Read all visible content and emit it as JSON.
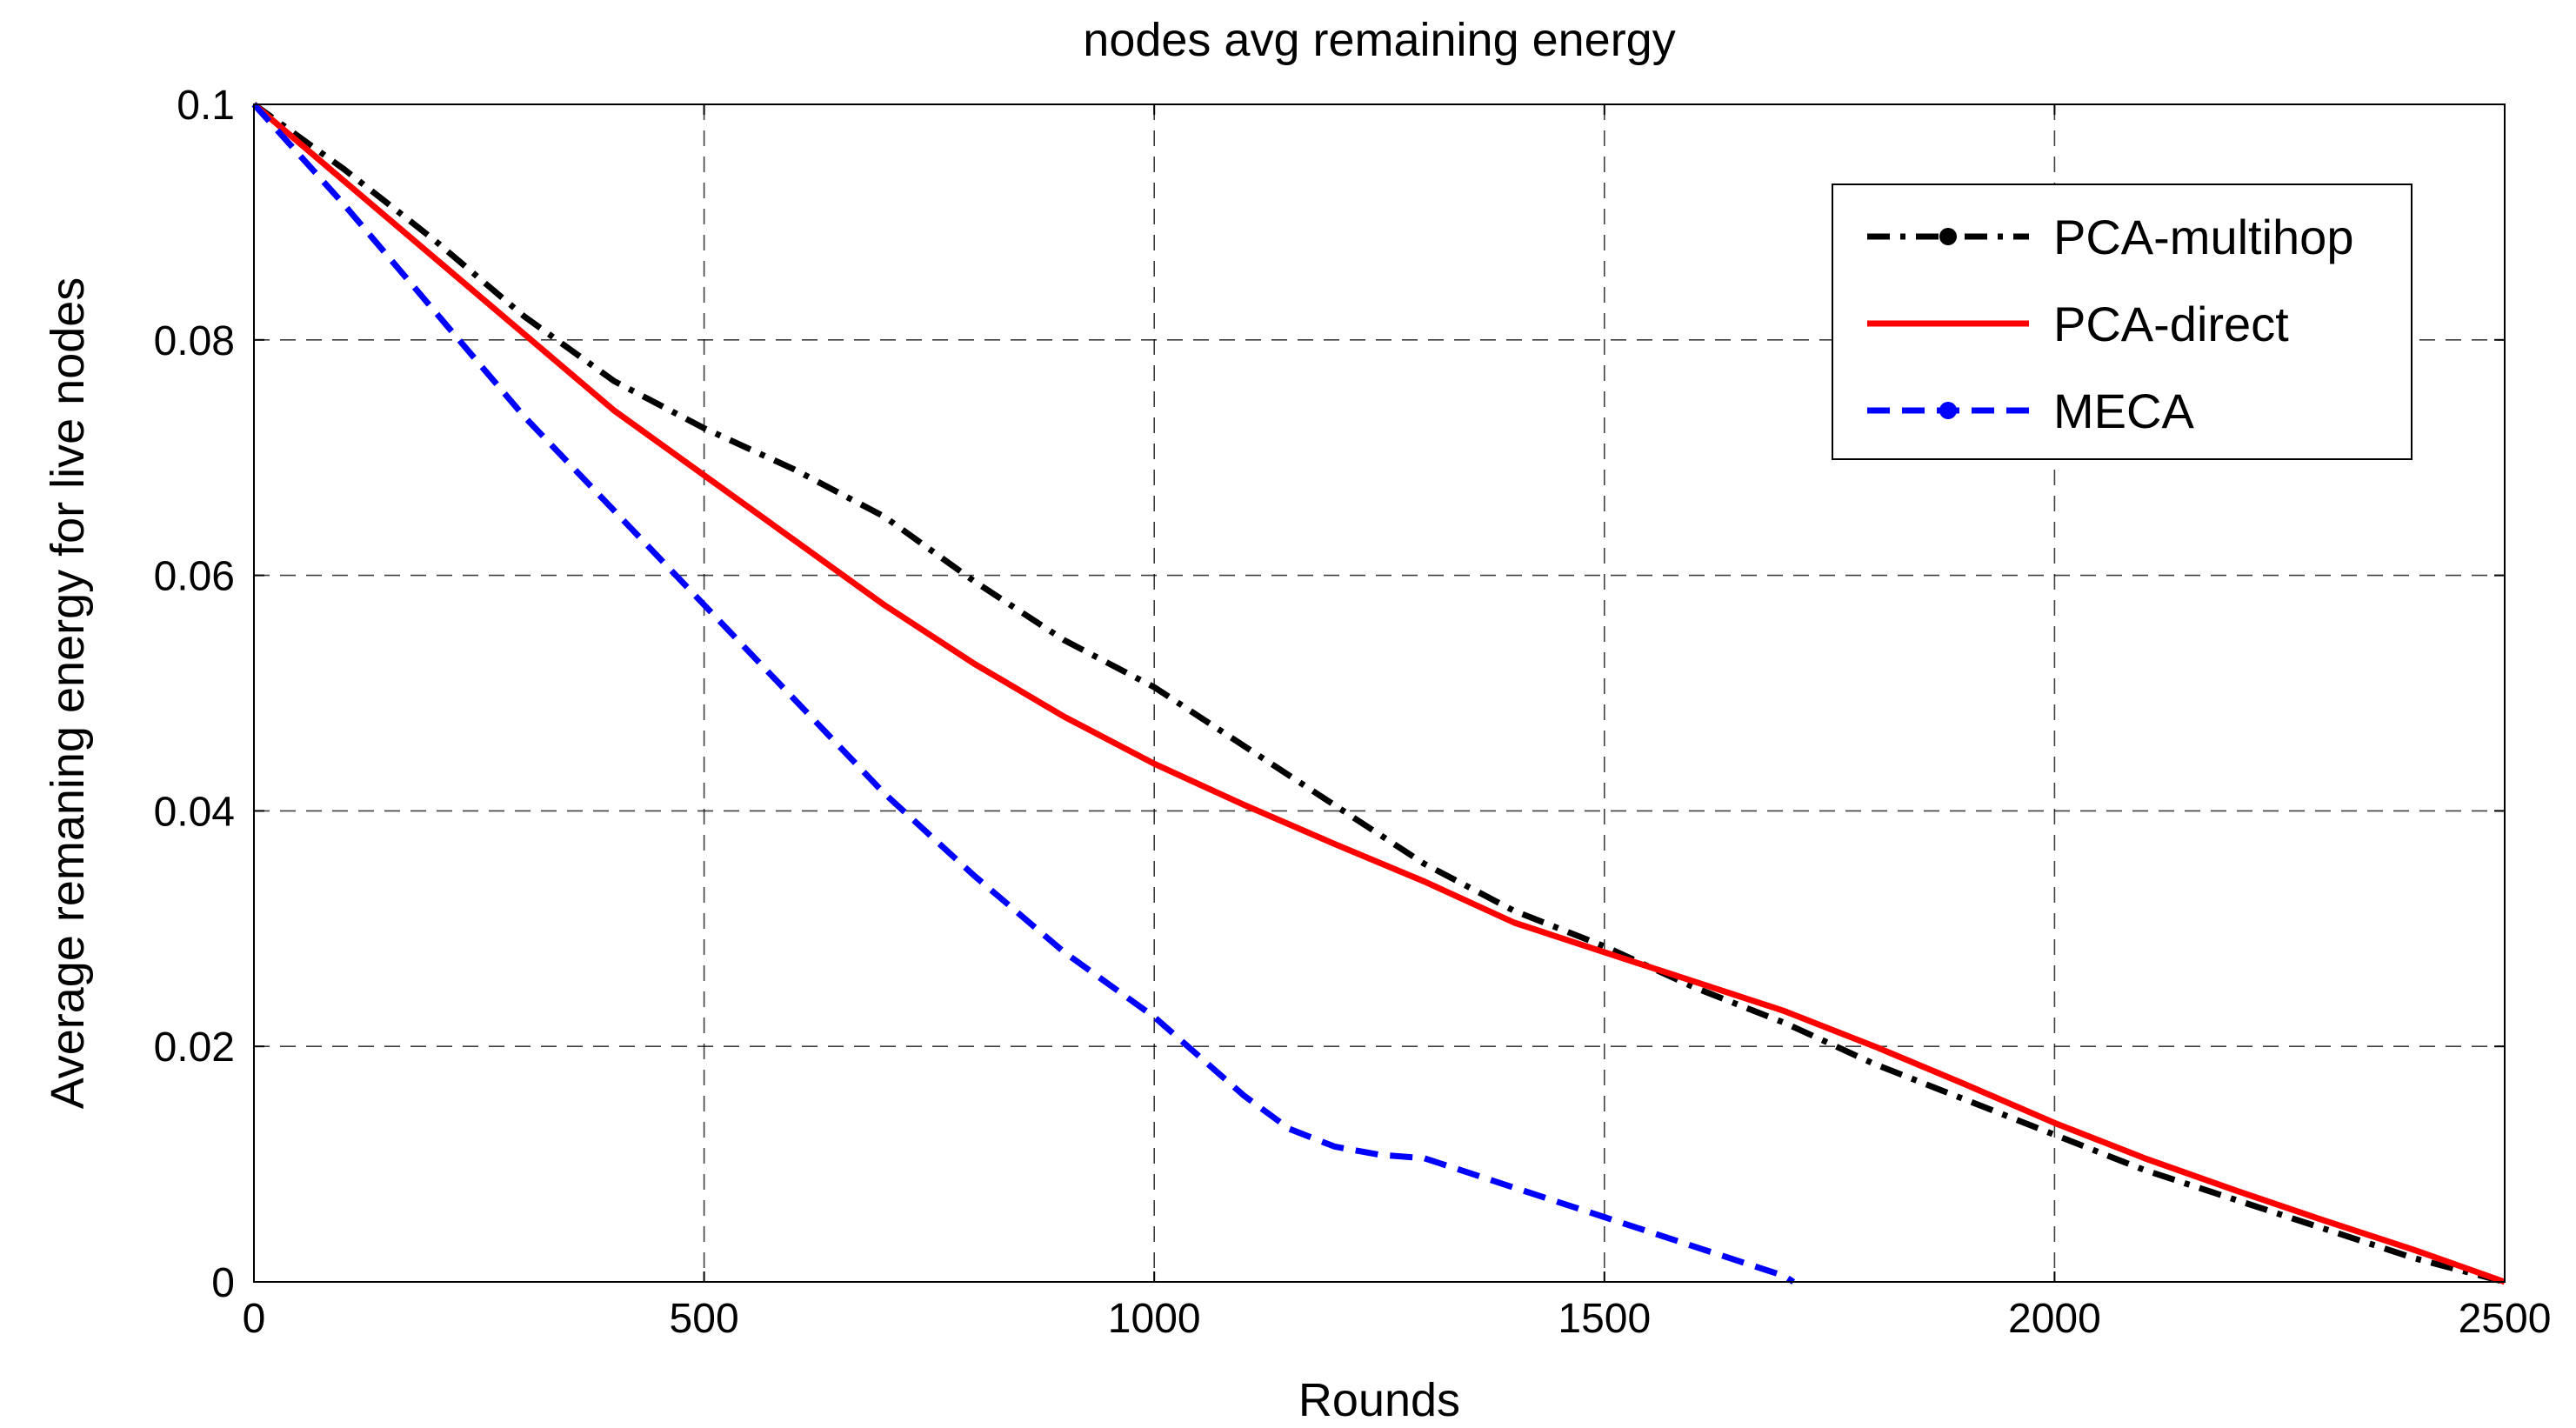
{
  "chart_data": {
    "type": "line",
    "title": "nodes avg remaining energy",
    "xlabel": "Rounds",
    "ylabel": "Average remaning energy  for live nodes",
    "xlim": [
      0,
      2500
    ],
    "ylim": [
      0,
      0.1
    ],
    "xticks": [
      0,
      500,
      1000,
      1500,
      2000,
      2500
    ],
    "xtick_labels": [
      "0",
      "500",
      "1000",
      "1500",
      "2000",
      "2500"
    ],
    "yticks": [
      0,
      0.02,
      0.04,
      0.06,
      0.08,
      0.1
    ],
    "ytick_labels": [
      "0",
      "0.02",
      "0.04",
      "0.06",
      "0.08",
      "0.1"
    ],
    "grid": true,
    "legend_position": "top-right",
    "series": [
      {
        "name": "PCA-multihop",
        "color": "#000000",
        "style": "dashdot",
        "marker": "circle",
        "x": [
          0,
          100,
          200,
          300,
          400,
          500,
          600,
          700,
          800,
          900,
          1000,
          1100,
          1200,
          1300,
          1400,
          1500,
          1600,
          1700,
          1800,
          1900,
          2000,
          2100,
          2200,
          2300,
          2400,
          2500
        ],
        "y": [
          0.1,
          0.0945,
          0.0885,
          0.082,
          0.0765,
          0.0725,
          0.069,
          0.065,
          0.0595,
          0.0545,
          0.0505,
          0.0455,
          0.0405,
          0.0355,
          0.0315,
          0.0285,
          0.025,
          0.022,
          0.0185,
          0.0155,
          0.0125,
          0.0095,
          0.007,
          0.0045,
          0.002,
          0.0
        ]
      },
      {
        "name": "PCA-direct",
        "color": "#ff0000",
        "style": "solid",
        "marker": "none",
        "x": [
          0,
          100,
          200,
          300,
          400,
          500,
          600,
          700,
          800,
          900,
          1000,
          1100,
          1200,
          1300,
          1400,
          1500,
          1600,
          1700,
          1800,
          1900,
          2000,
          2100,
          2200,
          2300,
          2400,
          2500
        ],
        "y": [
          0.1,
          0.0935,
          0.087,
          0.0805,
          0.074,
          0.0685,
          0.063,
          0.0575,
          0.0525,
          0.048,
          0.044,
          0.0405,
          0.0372,
          0.034,
          0.0305,
          0.028,
          0.0255,
          0.023,
          0.02,
          0.0168,
          0.0135,
          0.0105,
          0.0078,
          0.0052,
          0.0027,
          0.0
        ]
      },
      {
        "name": "MECA",
        "color": "#0000ff",
        "style": "dashed",
        "marker": "circle",
        "x": [
          0,
          100,
          200,
          300,
          400,
          500,
          600,
          700,
          800,
          900,
          1000,
          1100,
          1150,
          1200,
          1250,
          1300,
          1400,
          1500,
          1600,
          1700,
          1710
        ],
        "y": [
          0.1,
          0.0915,
          0.0825,
          0.0735,
          0.0655,
          0.0575,
          0.0495,
          0.0415,
          0.0345,
          0.028,
          0.0225,
          0.0158,
          0.013,
          0.0115,
          0.0108,
          0.0105,
          0.008,
          0.0055,
          0.003,
          0.0005,
          0.0
        ]
      }
    ]
  }
}
